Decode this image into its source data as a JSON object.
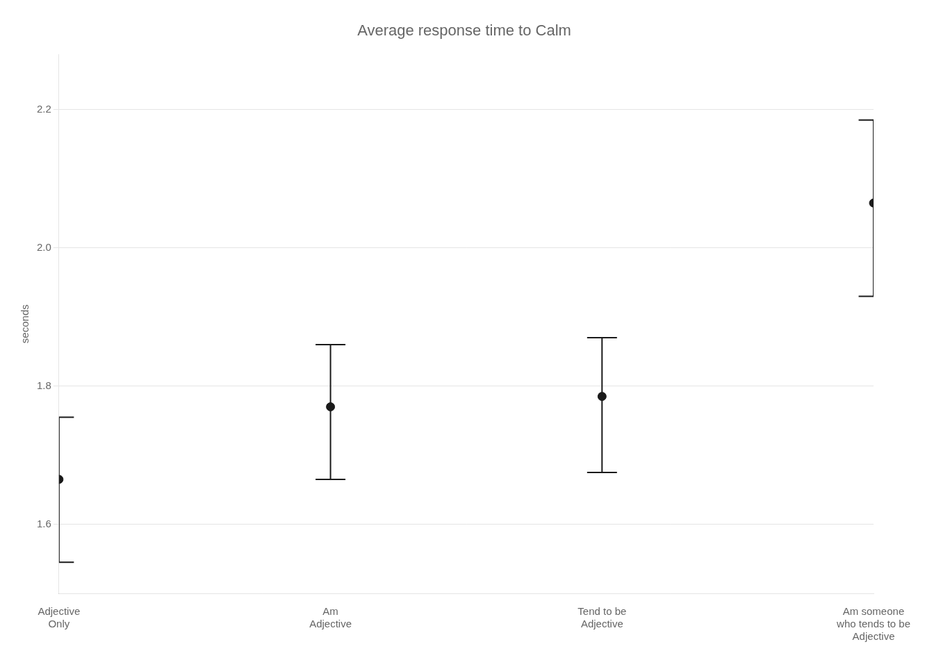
{
  "chart_data": {
    "type": "errorbar",
    "title": "Average response time to Calm",
    "ylabel": "seconds",
    "categories": [
      "Adjective\nOnly",
      "Am\nAdjective",
      "Tend to be\nAdjective",
      "Am someone\nwho tends to be\nAdjective"
    ],
    "values": [
      1.665,
      1.77,
      1.785,
      2.065
    ],
    "ci_lower": [
      1.545,
      1.665,
      1.675,
      1.93
    ],
    "ci_upper": [
      1.755,
      1.86,
      1.87,
      2.185
    ],
    "color": "#1a1a1a",
    "ylim": [
      1.5,
      2.28
    ],
    "yticks": [
      1.6,
      1.8,
      {
        "value": 2,
        "label": "2.0"
      },
      2.2
    ],
    "grid": true
  }
}
